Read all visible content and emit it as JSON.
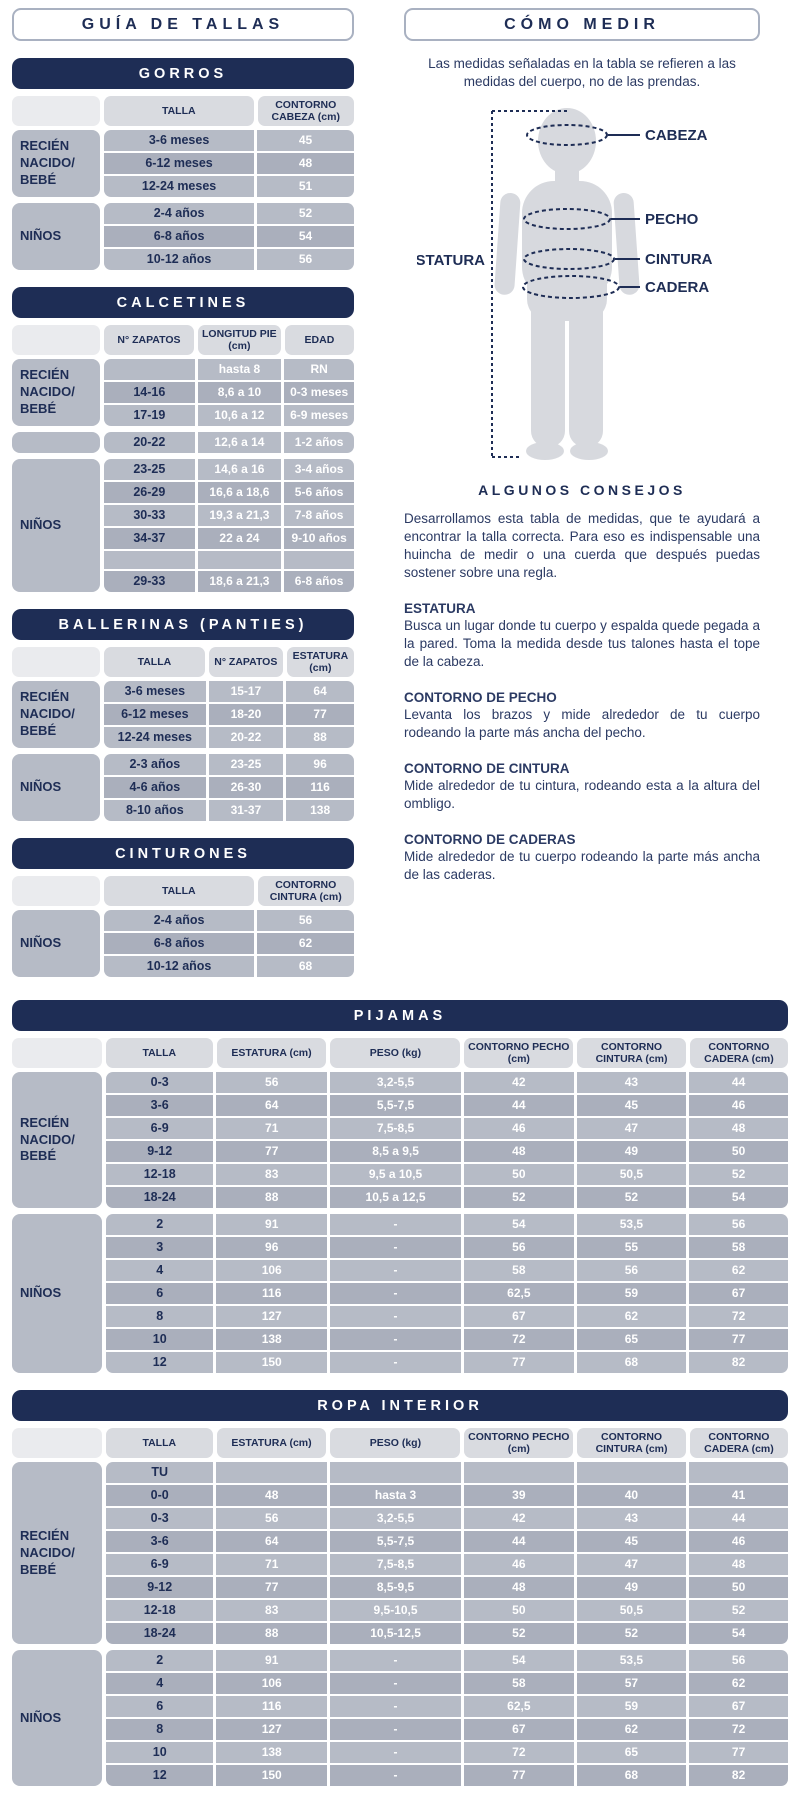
{
  "colors": {
    "navy": "#1e2d55",
    "cell_gray": "#b6bbc6",
    "cell_gray_alt": "#aaafbc",
    "header_pill_gray": "#d9dbe0",
    "corner_gray": "#eaebee",
    "silhouette_gray": "#d7d9de",
    "white": "#ffffff"
  },
  "left_column": {
    "title": "GUÍA DE TALLAS"
  },
  "right_column": {
    "title": "CÓMO MEDIR",
    "intro": "Las medidas señaladas en la tabla se refieren a las medidas del cuerpo, no de las prendas.",
    "diagram": {
      "cabeza": "CABEZA",
      "pecho": "PECHO",
      "cintura": "CINTURA",
      "cadera": "CADERA",
      "estatura": "ESTATURA"
    },
    "consejos": {
      "title": "ALGUNOS CONSEJOS",
      "intro": "Desarrollamos esta tabla de medidas, que te ayudará a encontrar la talla correcta. Para eso es indispensable una huincha de medir o una cuerda que después puedas sostener sobre una regla.",
      "sections": [
        {
          "heading": "ESTATURA",
          "text": "Busca un lugar donde tu cuerpo y espalda quede pegada a la pared. Toma la medida desde tus talones hasta el tope de la cabeza."
        },
        {
          "heading": "CONTORNO DE PECHO",
          "text": "Levanta los brazos y mide alrededor de tu cuerpo rodeando la parte más ancha del pecho."
        },
        {
          "heading": "CONTORNO DE CINTURA",
          "text": "Mide alrededor de tu cintura, rodeando esta a la altura del ombligo."
        },
        {
          "heading": "CONTORNO DE CADERAS",
          "text": "Mide alrededor de tu cuerpo rodeando la parte más ancha de las caderas."
        }
      ]
    }
  },
  "tables": {
    "gorros": {
      "title": "GORROS",
      "columns": [
        "TALLA",
        "CONTORNO CABEZA (cm)"
      ],
      "groups": [
        {
          "label": "RECIÉN NACIDO/ BEBÉ",
          "rows": [
            [
              "3-6 meses",
              "45"
            ],
            [
              "6-12 meses",
              "48"
            ],
            [
              "12-24 meses",
              "51"
            ]
          ]
        },
        {
          "label": "NIÑOS",
          "rows": [
            [
              "2-4 años",
              "52"
            ],
            [
              "6-8 años",
              "54"
            ],
            [
              "10-12 años",
              "56"
            ]
          ]
        }
      ]
    },
    "calcetines": {
      "title": "CALCETINES",
      "columns": [
        "N° ZAPATOS",
        "LONGITUD PIE (cm)",
        "EDAD"
      ],
      "groups": [
        {
          "label": "RECIÉN NACIDO/ BEBÉ",
          "rows": [
            [
              "",
              "hasta 8",
              "RN"
            ],
            [
              "14-16",
              "8,6 a 10",
              "0-3 meses"
            ],
            [
              "17-19",
              "10,6 a 12",
              "6-9 meses"
            ]
          ]
        },
        {
          "label": "",
          "rows": [
            [
              "20-22",
              "12,6 a 14",
              "1-2 años"
            ]
          ]
        },
        {
          "label": "NIÑOS",
          "rows": [
            [
              "23-25",
              "14,6 a 16",
              "3-4 años"
            ],
            [
              "26-29",
              "16,6 a 18,6",
              "5-6 años"
            ],
            [
              "30-33",
              "19,3 a 21,3",
              "7-8 años"
            ],
            [
              "34-37",
              "22 a 24",
              "9-10 años"
            ],
            [
              "",
              "",
              ""
            ],
            [
              "29-33",
              "18,6 a 21,3",
              "6-8 años"
            ]
          ]
        }
      ]
    },
    "ballerinas": {
      "title": "BALLERINAS (PANTIES)",
      "columns": [
        "TALLA",
        "N° ZAPATOS",
        "ESTATURA (cm)"
      ],
      "groups": [
        {
          "label": "RECIÉN NACIDO/ BEBÉ",
          "rows": [
            [
              "3-6 meses",
              "15-17",
              "64"
            ],
            [
              "6-12 meses",
              "18-20",
              "77"
            ],
            [
              "12-24 meses",
              "20-22",
              "88"
            ]
          ]
        },
        {
          "label": "NIÑOS",
          "rows": [
            [
              "2-3 años",
              "23-25",
              "96"
            ],
            [
              "4-6 años",
              "26-30",
              "116"
            ],
            [
              "8-10 años",
              "31-37",
              "138"
            ]
          ]
        }
      ]
    },
    "cinturones": {
      "title": "CINTURONES",
      "columns": [
        "TALLA",
        "CONTORNO CINTURA (cm)"
      ],
      "groups": [
        {
          "label": "NIÑOS",
          "rows": [
            [
              "2-4 años",
              "56"
            ],
            [
              "6-8 años",
              "62"
            ],
            [
              "10-12 años",
              "68"
            ]
          ]
        }
      ]
    },
    "pijamas": {
      "title": "PIJAMAS",
      "columns": [
        "TALLA",
        "ESTATURA (cm)",
        "PESO (kg)",
        "CONTORNO PECHO (cm)",
        "CONTORNO CINTURA (cm)",
        "CONTORNO CADERA (cm)"
      ],
      "groups": [
        {
          "label": "RECIÉN NACIDO/ BEBÉ",
          "rows": [
            [
              "0-3",
              "56",
              "3,2-5,5",
              "42",
              "43",
              "44"
            ],
            [
              "3-6",
              "64",
              "5,5-7,5",
              "44",
              "45",
              "46"
            ],
            [
              "6-9",
              "71",
              "7,5-8,5",
              "46",
              "47",
              "48"
            ],
            [
              "9-12",
              "77",
              "8,5 a 9,5",
              "48",
              "49",
              "50"
            ],
            [
              "12-18",
              "83",
              "9,5 a 10,5",
              "50",
              "50,5",
              "52"
            ],
            [
              "18-24",
              "88",
              "10,5 a 12,5",
              "52",
              "52",
              "54"
            ]
          ]
        },
        {
          "label": "NIÑOS",
          "rows": [
            [
              "2",
              "91",
              "-",
              "54",
              "53,5",
              "56"
            ],
            [
              "3",
              "96",
              "-",
              "56",
              "55",
              "58"
            ],
            [
              "4",
              "106",
              "-",
              "58",
              "56",
              "62"
            ],
            [
              "6",
              "116",
              "-",
              "62,5",
              "59",
              "67"
            ],
            [
              "8",
              "127",
              "-",
              "67",
              "62",
              "72"
            ],
            [
              "10",
              "138",
              "-",
              "72",
              "65",
              "77"
            ],
            [
              "12",
              "150",
              "-",
              "77",
              "68",
              "82"
            ]
          ]
        }
      ]
    },
    "ropa_interior": {
      "title": "ROPA INTERIOR",
      "columns": [
        "TALLA",
        "ESTATURA (cm)",
        "PESO (kg)",
        "CONTORNO PECHO (cm)",
        "CONTORNO CINTURA (cm)",
        "CONTORNO CADERA (cm)"
      ],
      "groups": [
        {
          "label": "RECIÉN NACIDO/ BEBÉ",
          "rows": [
            [
              "TU",
              "",
              "",
              "",
              "",
              ""
            ],
            [
              "0-0",
              "48",
              "hasta 3",
              "39",
              "40",
              "41"
            ],
            [
              "0-3",
              "56",
              "3,2-5,5",
              "42",
              "43",
              "44"
            ],
            [
              "3-6",
              "64",
              "5,5-7,5",
              "44",
              "45",
              "46"
            ],
            [
              "6-9",
              "71",
              "7,5-8,5",
              "46",
              "47",
              "48"
            ],
            [
              "9-12",
              "77",
              "8,5-9,5",
              "48",
              "49",
              "50"
            ],
            [
              "12-18",
              "83",
              "9,5-10,5",
              "50",
              "50,5",
              "52"
            ],
            [
              "18-24",
              "88",
              "10,5-12,5",
              "52",
              "52",
              "54"
            ]
          ]
        },
        {
          "label": "NIÑOS",
          "rows": [
            [
              "2",
              "91",
              "-",
              "54",
              "53,5",
              "56"
            ],
            [
              "4",
              "106",
              "-",
              "58",
              "57",
              "62"
            ],
            [
              "6",
              "116",
              "-",
              "62,5",
              "59",
              "67"
            ],
            [
              "8",
              "127",
              "-",
              "67",
              "62",
              "72"
            ],
            [
              "10",
              "138",
              "-",
              "72",
              "65",
              "77"
            ],
            [
              "12",
              "150",
              "-",
              "77",
              "68",
              "82"
            ]
          ]
        }
      ]
    }
  }
}
